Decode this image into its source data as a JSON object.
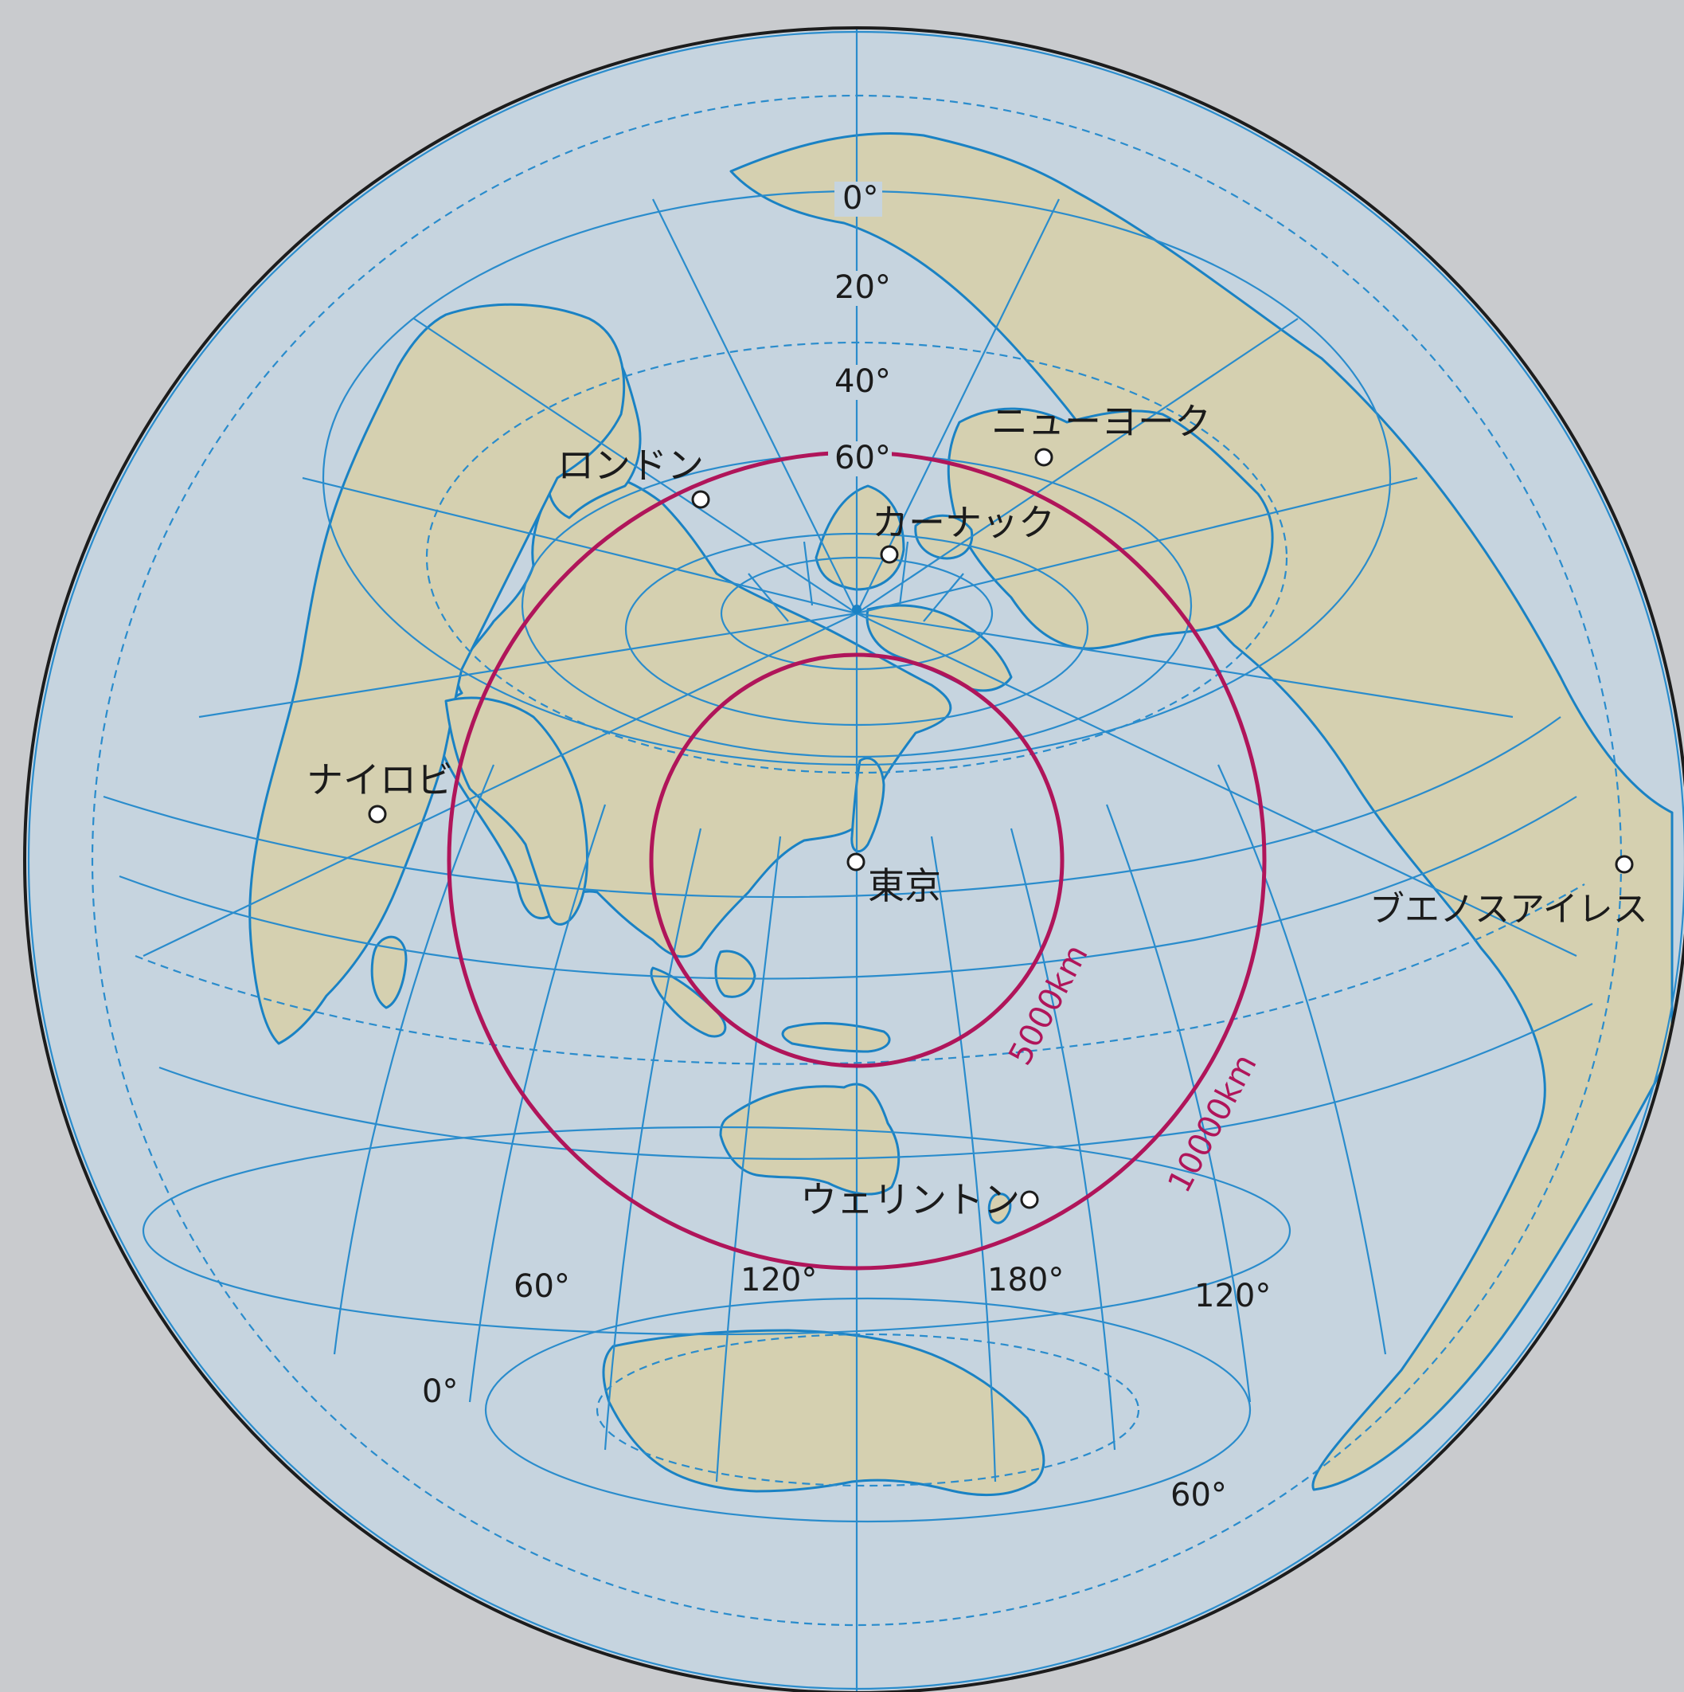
{
  "map": {
    "colors": {
      "background": "#c9cbce",
      "ocean": "#c6d4df",
      "land": "#d5d0b0",
      "coast": "#1a82c4",
      "grid": "#2a8ccc",
      "rim": "#1c1c1c",
      "distance_circle": "#b0155a",
      "city_marker": "#ffffff"
    },
    "latitude_labels": [
      "0°",
      "20°",
      "40°",
      "60°"
    ],
    "longitude_labels": [
      "60°",
      "120°",
      "180°",
      "120°",
      "0°",
      "60°"
    ],
    "distance_circles": [
      {
        "label": "5000km",
        "distance_km": 5000
      },
      {
        "label": "10000km",
        "distance_km": 10000
      }
    ],
    "cities": [
      {
        "name": "東京",
        "role": "projection center"
      },
      {
        "name": "ロンドン"
      },
      {
        "name": "カーナック"
      },
      {
        "name": "ニューヨーク"
      },
      {
        "name": "ナイロビ"
      },
      {
        "name": "ブエノスアイレス"
      },
      {
        "name": "ウェリントン"
      }
    ]
  }
}
